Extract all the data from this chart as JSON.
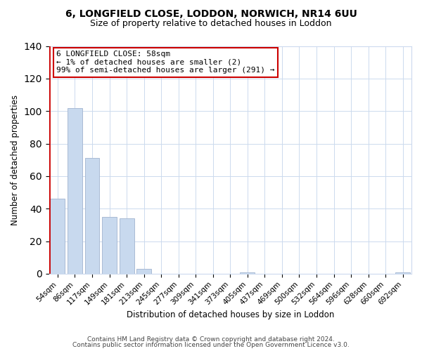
{
  "title1": "6, LONGFIELD CLOSE, LODDON, NORWICH, NR14 6UU",
  "title2": "Size of property relative to detached houses in Loddon",
  "xlabel": "Distribution of detached houses by size in Loddon",
  "ylabel": "Number of detached properties",
  "categories": [
    "54sqm",
    "86sqm",
    "117sqm",
    "149sqm",
    "181sqm",
    "213sqm",
    "245sqm",
    "277sqm",
    "309sqm",
    "341sqm",
    "373sqm",
    "405sqm",
    "437sqm",
    "469sqm",
    "500sqm",
    "532sqm",
    "564sqm",
    "596sqm",
    "628sqm",
    "660sqm",
    "692sqm"
  ],
  "values": [
    46,
    102,
    71,
    35,
    34,
    3,
    0,
    0,
    0,
    0,
    0,
    1,
    0,
    0,
    0,
    0,
    0,
    0,
    0,
    0,
    1
  ],
  "bar_color": "#c8d9ee",
  "bar_edge_color": "#aabbd4",
  "red_line_color": "#cc0000",
  "annotation_text_line1": "6 LONGFIELD CLOSE: 58sqm",
  "annotation_text_line2": "← 1% of detached houses are smaller (2)",
  "annotation_text_line3": "99% of semi-detached houses are larger (291) →",
  "ylim": [
    0,
    140
  ],
  "yticks": [
    0,
    20,
    40,
    60,
    80,
    100,
    120,
    140
  ],
  "footer1": "Contains HM Land Registry data © Crown copyright and database right 2024.",
  "footer2": "Contains public sector information licensed under the Open Government Licence v3.0.",
  "background_color": "#ffffff",
  "grid_color": "#ccdaee",
  "red_line_x": 0.425
}
